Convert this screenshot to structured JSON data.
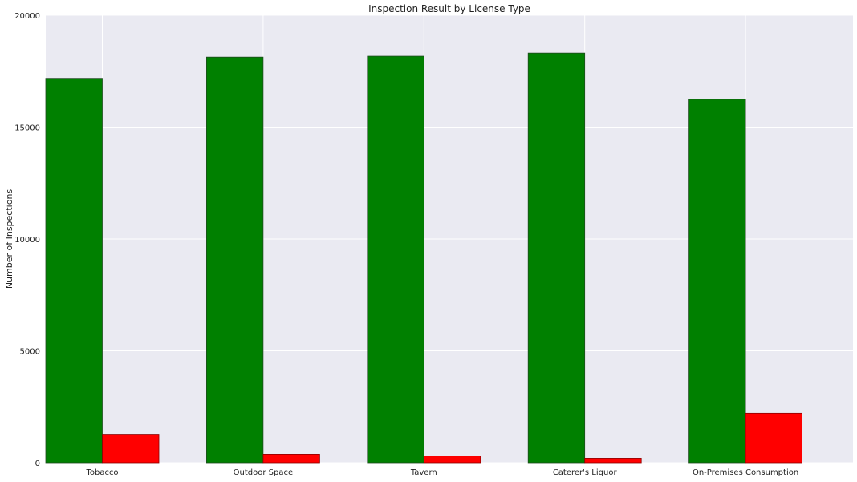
{
  "chart_data": {
    "type": "bar",
    "title": "Inspection Result by License Type",
    "xlabel": "",
    "ylabel": "Number of Inspections",
    "categories": [
      "Tobacco",
      "Outdoor Space",
      "Tavern",
      "Caterer's Liquor",
      "On-Premises Consumption"
    ],
    "series": [
      {
        "values": [
          17180,
          18130,
          18170,
          18310,
          16240
        ],
        "color": "#008000"
      },
      {
        "values": [
          1270,
          380,
          300,
          200,
          2210
        ],
        "color": "#ff0000"
      }
    ],
    "ylim": [
      0,
      20000
    ],
    "yticks": [
      0,
      5000,
      10000,
      15000,
      20000
    ],
    "grid": true,
    "legend": "none",
    "background": "#eaeaf2"
  }
}
